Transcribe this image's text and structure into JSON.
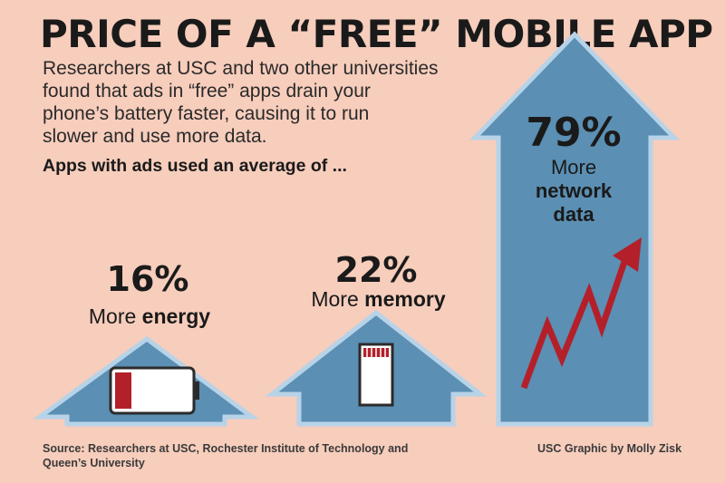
{
  "title": "PRICE OF A “FREE” MOBILE APP",
  "intro": [
    "Researchers at USC and two other universities",
    "found that ads in “free” apps drain your",
    "phone’s battery faster, causing it to run",
    "slower and use more data."
  ],
  "lead": "Apps with ads used an average of ...",
  "stats": [
    {
      "value": "16%",
      "prefix": "More",
      "emphasis": "energy",
      "icon": "battery-icon"
    },
    {
      "value": "22%",
      "prefix": "More",
      "emphasis": "memory",
      "icon": "memory-card-icon"
    },
    {
      "value": "79%",
      "prefix": "More",
      "emphasis_line1": "network",
      "emphasis_line2": "data",
      "icon": "trend-up-arrow-icon"
    }
  ],
  "source": [
    "Source: Researchers at USC, Rochester Institute of Technology and",
    "Queen’s University"
  ],
  "credit": "USC Graphic by Molly Zisk",
  "colors": {
    "background": "#f7cdbc",
    "shape_fill": "#5b8fb3",
    "shape_outline": "#b7d3e8",
    "accent_red": "#b3202a"
  }
}
